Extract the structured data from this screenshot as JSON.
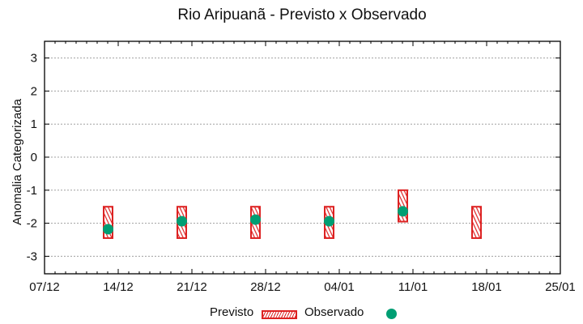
{
  "chart_data": {
    "type": "scatter",
    "title": "Rio Aripuanã - Previsto x Observado",
    "xlabel": "",
    "ylabel": "Anomalia Categorizada",
    "ylim": [
      -3.5,
      3.5
    ],
    "yticks": [
      3,
      2,
      1,
      0,
      -1,
      -2,
      -3
    ],
    "xticks": [
      "07/12",
      "14/12",
      "21/12",
      "28/12",
      "04/01",
      "11/01",
      "18/01",
      "25/01"
    ],
    "grid": "horizontal dotted",
    "legend_position": "bottom",
    "series": [
      {
        "name": "Previsto",
        "kind": "range-box",
        "color": "#dd2222",
        "pattern": "hatched",
        "points": [
          {
            "x": "13/12",
            "low": -2.45,
            "high": -1.5
          },
          {
            "x": "20/12",
            "low": -2.45,
            "high": -1.5
          },
          {
            "x": "27/12",
            "low": -2.45,
            "high": -1.5
          },
          {
            "x": "03/01",
            "low": -2.45,
            "high": -1.5
          },
          {
            "x": "10/01",
            "low": -1.95,
            "high": -1.0
          },
          {
            "x": "17/01",
            "low": -2.45,
            "high": -1.5
          }
        ]
      },
      {
        "name": "Observado",
        "kind": "point",
        "color": "#009e73",
        "points": [
          {
            "x": "13/12",
            "y": -2.18
          },
          {
            "x": "20/12",
            "y": -1.94
          },
          {
            "x": "27/12",
            "y": -1.89
          },
          {
            "x": "03/01",
            "y": -1.94
          },
          {
            "x": "10/01",
            "y": -1.64
          }
        ]
      }
    ]
  },
  "legend": {
    "previsto": "Previsto",
    "observado": "Observado"
  }
}
